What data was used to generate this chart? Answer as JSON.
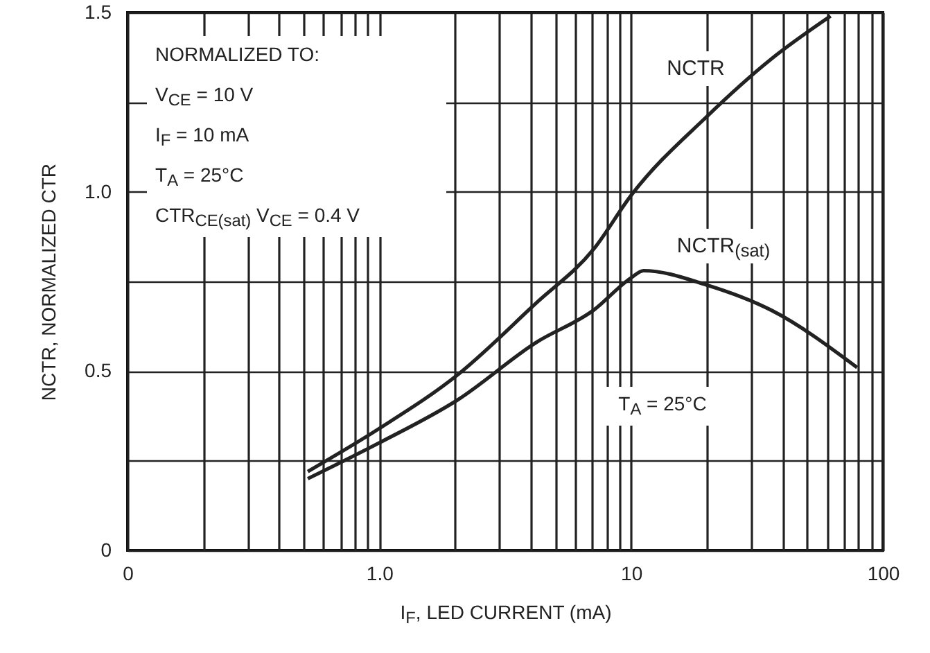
{
  "chart_data": {
    "type": "line",
    "xlabel": "I$_{F}$, LED CURRENT (mA)",
    "ylabel": "NCTR, NORMALIZED CTR",
    "annotations": [
      "NORMALIZED TO:",
      "V$_{CE}$ = 10 V",
      "I$_{F}$ = 10 mA",
      "T$_{A}$ = 25°C",
      "CTR$_{CE(sat)}$ V$_{CE}$ = 0.4 V",
      "T$_{A}$ = 25°C"
    ],
    "log": "x",
    "grid": true,
    "marker": "none",
    "line_style": "solid",
    "xlim": [
      0.1,
      100
    ],
    "ylim": [
      0,
      1.5
    ],
    "xticks": [
      {
        "value": 0.1,
        "label": "0"
      },
      {
        "value": 0.2,
        "label": null
      },
      {
        "value": 0.3,
        "label": null
      },
      {
        "value": 0.4,
        "label": null
      },
      {
        "value": 0.5,
        "label": null
      },
      {
        "value": 0.6,
        "label": null
      },
      {
        "value": 0.7,
        "label": null
      },
      {
        "value": 0.8,
        "label": null
      },
      {
        "value": 0.9,
        "label": null
      },
      {
        "value": 1,
        "label": "1.0"
      },
      {
        "value": 2,
        "label": null
      },
      {
        "value": 3,
        "label": null
      },
      {
        "value": 4,
        "label": null
      },
      {
        "value": 5,
        "label": null
      },
      {
        "value": 6,
        "label": null
      },
      {
        "value": 7,
        "label": null
      },
      {
        "value": 8,
        "label": null
      },
      {
        "value": 9,
        "label": null
      },
      10,
      {
        "value": 20,
        "label": null
      },
      {
        "value": 30,
        "label": null
      },
      {
        "value": 40,
        "label": null
      },
      {
        "value": 50,
        "label": null
      },
      {
        "value": 60,
        "label": null
      },
      {
        "value": 70,
        "label": null
      },
      {
        "value": 80,
        "label": null
      },
      {
        "value": 90,
        "label": null
      },
      100
    ],
    "yticks": [
      0,
      {
        "value": 0.25,
        "label": null
      },
      0.5,
      {
        "value": 0.75,
        "label": null
      },
      {
        "value": 1,
        "label": "1.0"
      },
      {
        "value": 1.25,
        "label": null
      },
      1.5
    ],
    "series": [
      {
        "name": "NCTR",
        "color": "#222222",
        "x": [
          0.52,
          1,
          2.05,
          4.2,
          7.1,
          10,
          20,
          36,
          62
        ],
        "values": [
          0.22,
          0.34,
          0.49,
          0.69,
          0.84,
          0.99,
          1.21,
          1.37,
          1.49
        ]
      },
      {
        "name": "NCTR$_{(sat)}$",
        "color": "#222222",
        "x": [
          0.52,
          1,
          2.05,
          4.2,
          7.1,
          10,
          11.2,
          20,
          36,
          79
        ],
        "values": [
          0.2,
          0.3,
          0.42,
          0.58,
          0.67,
          0.76,
          0.78,
          0.74,
          0.67,
          0.51
        ]
      }
    ]
  }
}
